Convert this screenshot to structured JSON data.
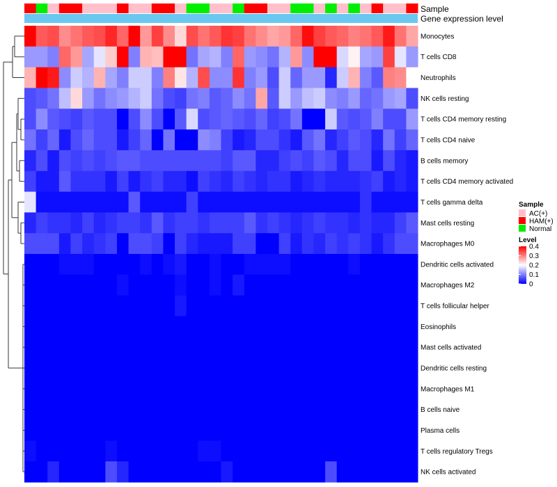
{
  "chart_data": {
    "type": "heatmap",
    "title": "",
    "annotation_tracks": [
      "Sample",
      "Gene expression level"
    ],
    "sample_annotation": [
      "HAM(+)",
      "Normal",
      "AC(+)",
      "HAM(+)",
      "HAM(+)",
      "AC(+)",
      "AC(+)",
      "AC(+)",
      "HAM(+)",
      "AC(+)",
      "AC(+)",
      "HAM(+)",
      "HAM(+)",
      "AC(+)",
      "Normal",
      "Normal",
      "AC(+)",
      "AC(+)",
      "Normal",
      "HAM(+)",
      "HAM(+)",
      "AC(+)",
      "AC(+)",
      "Normal",
      "Normal",
      "AC(+)",
      "Normal",
      "AC(+)",
      "Normal",
      "AC(+)",
      "HAM(+)",
      "AC(+)",
      "AC(+)",
      "HAM(+)"
    ],
    "expression_track_color": "#6ac8f0",
    "rows": [
      "Monocytes",
      "T cells CD8",
      "Neutrophils",
      "NK cells resting",
      "T cells CD4 memory resting",
      "T cells CD4 naive",
      "B cells memory",
      "T cells CD4 memory activated",
      "T cells gamma delta",
      "Mast cells resting",
      "Macrophages M0",
      "Dendritic cells activated",
      "Macrophages M2",
      "T cells follicular helper",
      "Eosinophils",
      "Mast cells activated",
      "Dendritic cells resting",
      "Macrophages M1",
      "B cells naive",
      "Plasma cells",
      "T cells regulatory  Tregs",
      "NK cells activated"
    ],
    "values": [
      [
        0.4,
        0.33,
        0.34,
        0.29,
        0.31,
        0.33,
        0.34,
        0.37,
        0.32,
        0.4,
        0.28,
        0.35,
        0.29,
        0.23,
        0.34,
        0.31,
        0.33,
        0.36,
        0.35,
        0.31,
        0.29,
        0.27,
        0.28,
        0.32,
        0.39,
        0.35,
        0.33,
        0.32,
        0.3,
        0.31,
        0.33,
        0.38,
        0.31,
        0.27
      ],
      [
        0.12,
        0.12,
        0.1,
        0.32,
        0.28,
        0.13,
        0.18,
        0.24,
        0.4,
        0.1,
        0.26,
        0.25,
        0.42,
        0.42,
        0.09,
        0.13,
        0.14,
        0.1,
        0.32,
        0.12,
        0.11,
        0.09,
        0.14,
        0.28,
        0.11,
        0.42,
        0.42,
        0.17,
        0.21,
        0.13,
        0.12,
        0.35,
        0.18,
        0.12
      ],
      [
        0.26,
        0.4,
        0.38,
        0.11,
        0.16,
        0.14,
        0.26,
        0.13,
        0.1,
        0.16,
        0.16,
        0.1,
        0.3,
        0.22,
        0.14,
        0.34,
        0.11,
        0.11,
        0.36,
        0.1,
        0.12,
        0.06,
        0.16,
        0.08,
        0.12,
        0.12,
        0.03,
        0.16,
        0.26,
        0.1,
        0.07,
        0.3,
        0.29,
        0.2
      ],
      [
        0.06,
        0.07,
        0.09,
        0.15,
        0.23,
        0.12,
        0.09,
        0.11,
        0.12,
        0.14,
        0.16,
        0.09,
        0.06,
        0.05,
        0.09,
        0.1,
        0.07,
        0.08,
        0.11,
        0.09,
        0.27,
        0.07,
        0.16,
        0.12,
        0.15,
        0.16,
        0.11,
        0.1,
        0.12,
        0.08,
        0.09,
        0.12,
        0.13,
        0.06
      ],
      [
        0.06,
        0.11,
        0.07,
        0.06,
        0.05,
        0.07,
        0.06,
        0.06,
        0.0,
        0.06,
        0.11,
        0.06,
        0.0,
        0.07,
        0.17,
        0.06,
        0.07,
        0.08,
        0.07,
        0.06,
        0.08,
        0.05,
        0.06,
        0.09,
        0.0,
        0.0,
        0.16,
        0.07,
        0.06,
        0.07,
        0.1,
        0.06,
        0.06,
        0.12
      ],
      [
        0.09,
        0.05,
        0.08,
        0.02,
        0.06,
        0.08,
        0.06,
        0.06,
        0.02,
        0.05,
        0.08,
        0.0,
        0.09,
        0.0,
        0.0,
        0.11,
        0.1,
        0.05,
        0.02,
        0.03,
        0.06,
        0.06,
        0.04,
        0.02,
        0.07,
        0.09,
        0.03,
        0.05,
        0.07,
        0.06,
        0.03,
        0.09,
        0.05,
        0.08
      ],
      [
        0.03,
        0.06,
        0.02,
        0.06,
        0.05,
        0.06,
        0.05,
        0.06,
        0.07,
        0.07,
        0.06,
        0.06,
        0.06,
        0.06,
        0.06,
        0.06,
        0.06,
        0.05,
        0.07,
        0.07,
        0.03,
        0.03,
        0.05,
        0.06,
        0.05,
        0.07,
        0.06,
        0.03,
        0.06,
        0.06,
        0.02,
        0.06,
        0.03,
        0.02
      ],
      [
        0.05,
        0.02,
        0.02,
        0.07,
        0.04,
        0.04,
        0.04,
        0.02,
        0.05,
        0.02,
        0.04,
        0.05,
        0.03,
        0.03,
        0.01,
        0.05,
        0.04,
        0.03,
        0.05,
        0.04,
        0.03,
        0.04,
        0.04,
        0.02,
        0.03,
        0.04,
        0.03,
        0.03,
        0.03,
        0.04,
        0.05,
        0.02,
        0.03,
        0.02
      ],
      [
        0.18,
        0.01,
        0.01,
        0.01,
        0.01,
        0.01,
        0.01,
        0.01,
        0.01,
        0.07,
        0.01,
        0.01,
        0.01,
        0.01,
        0.05,
        0.01,
        0.01,
        0.01,
        0.01,
        0.01,
        0.01,
        0.01,
        0.01,
        0.01,
        0.01,
        0.01,
        0.01,
        0.01,
        0.01,
        0.04,
        0.01,
        0.01,
        0.01,
        0.01
      ],
      [
        0.03,
        0.05,
        0.04,
        0.04,
        0.03,
        0.05,
        0.03,
        0.04,
        0.05,
        0.05,
        0.04,
        0.07,
        0.04,
        0.05,
        0.05,
        0.04,
        0.05,
        0.05,
        0.05,
        0.07,
        0.04,
        0.05,
        0.04,
        0.03,
        0.04,
        0.05,
        0.04,
        0.04,
        0.03,
        0.04,
        0.03,
        0.03,
        0.05,
        0.07
      ],
      [
        0.06,
        0.06,
        0.06,
        0.02,
        0.05,
        0.03,
        0.04,
        0.05,
        0.0,
        0.06,
        0.06,
        0.05,
        0.0,
        0.05,
        0.03,
        0.02,
        0.02,
        0.02,
        0.05,
        0.05,
        0.0,
        0.0,
        0.05,
        0.02,
        0.04,
        0.03,
        0.05,
        0.04,
        0.05,
        0.04,
        0.02,
        0.04,
        0.06,
        0.06
      ],
      [
        0.0,
        0.0,
        0.0,
        0.01,
        0.01,
        0.01,
        0.0,
        0.0,
        0.0,
        0.0,
        0.01,
        0.0,
        0.01,
        0.02,
        0.0,
        0.0,
        0.01,
        0.0,
        0.0,
        0.01,
        0.01,
        0.01,
        0.01,
        0.0,
        0.0,
        0.0,
        0.0,
        0.0,
        0.01,
        0.0,
        0.0,
        0.0,
        0.0,
        0.0
      ],
      [
        0.0,
        0.0,
        0.0,
        0.0,
        0.0,
        0.0,
        0.0,
        0.0,
        0.01,
        0.0,
        0.0,
        0.0,
        0.0,
        0.01,
        0.0,
        0.0,
        0.01,
        0.0,
        0.02,
        0.0,
        0.0,
        0.0,
        0.0,
        0.0,
        0.0,
        0.0,
        0.0,
        0.0,
        0.0,
        0.0,
        0.0,
        0.0,
        0.0,
        0.0
      ],
      [
        0.0,
        0.0,
        0.0,
        0.0,
        0.0,
        0.0,
        0.0,
        0.0,
        0.0,
        0.0,
        0.0,
        0.0,
        0.0,
        0.02,
        0.0,
        0.0,
        0.0,
        0.0,
        0.0,
        0.0,
        0.0,
        0.0,
        0.0,
        0.0,
        0.0,
        0.0,
        0.0,
        0.0,
        0.0,
        0.0,
        0.0,
        0.0,
        0.0,
        0.0
      ],
      [
        0.0,
        0.0,
        0.0,
        0.0,
        0.0,
        0.0,
        0.0,
        0.0,
        0.0,
        0.0,
        0.0,
        0.0,
        0.0,
        0.0,
        0.0,
        0.0,
        0.0,
        0.0,
        0.0,
        0.0,
        0.0,
        0.0,
        0.0,
        0.0,
        0.0,
        0.0,
        0.0,
        0.0,
        0.0,
        0.0,
        0.0,
        0.0,
        0.0,
        0.0
      ],
      [
        0.0,
        0.0,
        0.0,
        0.0,
        0.0,
        0.0,
        0.0,
        0.0,
        0.0,
        0.0,
        0.0,
        0.0,
        0.0,
        0.0,
        0.0,
        0.0,
        0.0,
        0.0,
        0.0,
        0.0,
        0.0,
        0.0,
        0.0,
        0.0,
        0.0,
        0.0,
        0.0,
        0.0,
        0.0,
        0.0,
        0.0,
        0.0,
        0.0,
        0.0
      ],
      [
        0.0,
        0.0,
        0.0,
        0.0,
        0.0,
        0.0,
        0.0,
        0.0,
        0.0,
        0.0,
        0.0,
        0.0,
        0.0,
        0.0,
        0.0,
        0.0,
        0.0,
        0.0,
        0.0,
        0.0,
        0.0,
        0.0,
        0.0,
        0.0,
        0.0,
        0.0,
        0.0,
        0.0,
        0.0,
        0.0,
        0.0,
        0.0,
        0.0,
        0.0
      ],
      [
        0.0,
        0.0,
        0.0,
        0.0,
        0.0,
        0.0,
        0.0,
        0.0,
        0.0,
        0.0,
        0.0,
        0.0,
        0.0,
        0.0,
        0.0,
        0.0,
        0.0,
        0.0,
        0.0,
        0.0,
        0.0,
        0.0,
        0.0,
        0.0,
        0.0,
        0.0,
        0.0,
        0.0,
        0.0,
        0.0,
        0.0,
        0.0,
        0.0,
        0.0
      ],
      [
        0.0,
        0.0,
        0.0,
        0.0,
        0.0,
        0.0,
        0.0,
        0.0,
        0.0,
        0.0,
        0.0,
        0.0,
        0.0,
        0.0,
        0.0,
        0.0,
        0.0,
        0.0,
        0.0,
        0.0,
        0.0,
        0.0,
        0.0,
        0.0,
        0.0,
        0.0,
        0.0,
        0.0,
        0.0,
        0.0,
        0.0,
        0.0,
        0.0,
        0.0
      ],
      [
        0.0,
        0.0,
        0.0,
        0.0,
        0.0,
        0.0,
        0.0,
        0.0,
        0.0,
        0.0,
        0.0,
        0.0,
        0.0,
        0.0,
        0.0,
        0.0,
        0.0,
        0.0,
        0.0,
        0.0,
        0.0,
        0.0,
        0.0,
        0.0,
        0.0,
        0.0,
        0.0,
        0.0,
        0.0,
        0.0,
        0.0,
        0.0,
        0.0,
        0.0
      ],
      [
        0.01,
        0.0,
        0.0,
        0.0,
        0.0,
        0.0,
        0.0,
        0.01,
        0.0,
        0.0,
        0.0,
        0.0,
        0.0,
        0.0,
        0.0,
        0.01,
        0.01,
        0.0,
        0.0,
        0.0,
        0.0,
        0.0,
        0.0,
        0.0,
        0.0,
        0.0,
        0.0,
        0.0,
        0.0,
        0.0,
        0.0,
        0.0,
        0.0,
        0.0
      ],
      [
        0.0,
        0.0,
        0.03,
        0.0,
        0.0,
        0.0,
        0.0,
        0.06,
        0.03,
        0.0,
        0.0,
        0.0,
        0.0,
        0.0,
        0.0,
        0.0,
        0.0,
        0.02,
        0.0,
        0.0,
        0.0,
        0.0,
        0.0,
        0.0,
        0.0,
        0.0,
        0.06,
        0.0,
        0.0,
        0.0,
        0.0,
        0.0,
        0.0,
        0.0
      ]
    ],
    "legend": {
      "sample_title": "Sample",
      "sample_levels": [
        {
          "label": "AC(+)",
          "color": "#ffc0cb"
        },
        {
          "label": "HAM(+)",
          "color": "#ff0000"
        },
        {
          "label": "Normal",
          "color": "#00ee00"
        }
      ],
      "level_title": "Level",
      "level_ticks": [
        "0.4",
        "0.3",
        "0.2",
        "0.1",
        "0"
      ],
      "level_range": [
        0,
        0.4
      ],
      "color_scale": {
        "low": "#0000ff",
        "mid": "#ffffff",
        "high": "#ff0000",
        "mid_value": 0.2
      }
    }
  }
}
